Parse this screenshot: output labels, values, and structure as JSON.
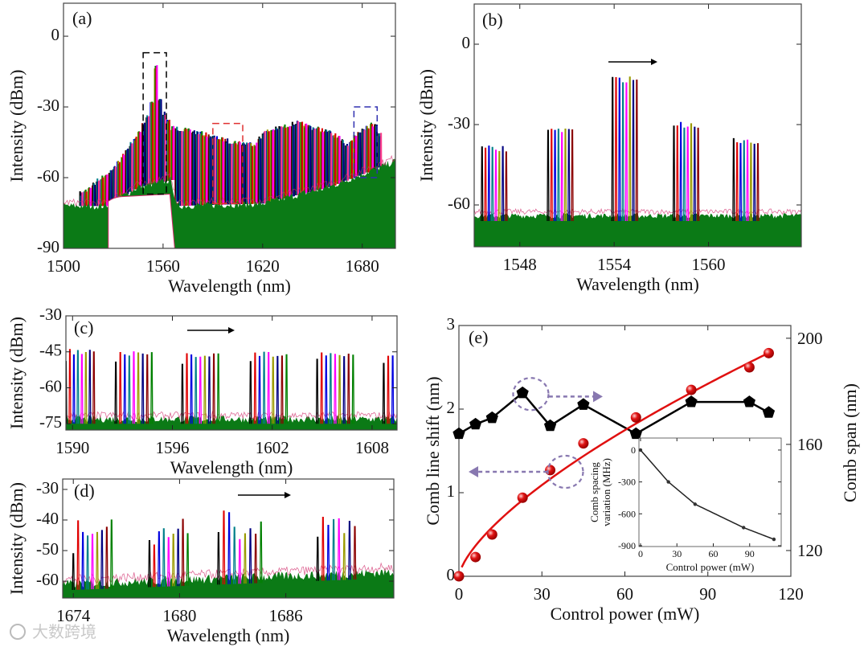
{
  "watermark": "大数跨境",
  "colors": {
    "floor": "#0b7a16",
    "fit": "#e01010",
    "points_red": "#e01515",
    "points_black": "#000000",
    "annotation": "#8878b0",
    "lines": [
      "#000000",
      "#e00000",
      "#0000e0",
      "#00808a",
      "#ff00ff",
      "#9a9a00",
      "#000080",
      "#8b0000",
      "#008000",
      "#ff3d8a"
    ]
  },
  "chart_data": [
    {
      "id": "a",
      "type": "line",
      "panel_label": "(a)",
      "xlabel": "Wavelength (nm)",
      "ylabel": "Intensity (dBm)",
      "xlim": [
        1500,
        1700
      ],
      "ylim": [
        -90,
        14
      ],
      "xticks": [
        1500,
        1560,
        1620,
        1680
      ],
      "yticks": [
        -90,
        -60,
        -30,
        0
      ],
      "comb_spacing_nm": 2.5,
      "comb_range": [
        1510,
        1692
      ],
      "envelope": [
        [
          1510,
          -66
        ],
        [
          1530,
          -55
        ],
        [
          1545,
          -40
        ],
        [
          1552,
          -30
        ],
        [
          1555,
          -12
        ],
        [
          1558,
          -29
        ],
        [
          1562,
          -35
        ],
        [
          1565,
          -38
        ],
        [
          1580,
          -40
        ],
        [
          1600,
          -44
        ],
        [
          1615,
          -45
        ],
        [
          1620,
          -40
        ],
        [
          1640,
          -36
        ],
        [
          1660,
          -40
        ],
        [
          1670,
          -45
        ],
        [
          1680,
          -38
        ],
        [
          1688,
          -36
        ],
        [
          1692,
          -46
        ]
      ],
      "floor": [
        [
          1500,
          -72
        ],
        [
          1525,
          -72
        ],
        [
          1545,
          -64
        ],
        [
          1565,
          -61
        ],
        [
          1568,
          -72
        ],
        [
          1620,
          -71
        ],
        [
          1660,
          -64
        ],
        [
          1700,
          -53
        ]
      ],
      "notch": {
        "range": [
          1527,
          1567
        ],
        "top": -68
      },
      "highlight_boxes": [
        {
          "color": "#000000",
          "x": [
            1548,
            1562
          ],
          "y": [
            -67,
            -7
          ]
        },
        {
          "color": "#e03030",
          "x": [
            1590,
            1608
          ],
          "y": [
            -71,
            -37
          ]
        },
        {
          "color": "#3030b0",
          "x": [
            1675,
            1689
          ],
          "y": [
            -60,
            -30
          ]
        }
      ]
    },
    {
      "id": "b",
      "type": "line",
      "panel_label": "(b)",
      "xlabel": "Wavelength (nm)",
      "ylabel": "Intensity (dBm)",
      "xlim": [
        1545.1,
        1565.9
      ],
      "ylim": [
        -75.6,
        15
      ],
      "xticks": [
        1548,
        1554,
        1560
      ],
      "yticks": [
        -60,
        -30,
        0
      ],
      "floor_level": -64,
      "groups": [
        {
          "start": 1545.6,
          "lines": 8,
          "spacing": 0.22,
          "peak": -38
        },
        {
          "start": 1549.8,
          "lines": 8,
          "spacing": 0.22,
          "peak": -31
        },
        {
          "start": 1553.9,
          "lines": 8,
          "spacing": 0.22,
          "peak": -12
        },
        {
          "start": 1557.8,
          "lines": 8,
          "spacing": 0.22,
          "peak": -29
        },
        {
          "start": 1561.6,
          "lines": 8,
          "spacing": 0.22,
          "peak": -35
        }
      ],
      "arrow": "shift-right"
    },
    {
      "id": "c",
      "type": "line",
      "panel_label": "(c)",
      "xlabel": "Wavelength (nm)",
      "ylabel": "Intensity (dBm)",
      "xlim": [
        1589.6,
        1609.5
      ],
      "ylim": [
        -77.6,
        -30
      ],
      "xticks": [
        1590,
        1596,
        1602,
        1608
      ],
      "yticks": [
        -75,
        -60,
        -45,
        -30
      ],
      "floor_level": -73,
      "groups": [
        {
          "start": 1589.6,
          "lines": 8,
          "spacing": 0.24,
          "peak": -44
        },
        {
          "start": 1592.6,
          "lines": 9,
          "spacing": 0.27,
          "peak": -45
        },
        {
          "start": 1596.6,
          "lines": 9,
          "spacing": 0.27,
          "peak": -45
        },
        {
          "start": 1600.7,
          "lines": 9,
          "spacing": 0.27,
          "peak": -45
        },
        {
          "start": 1604.7,
          "lines": 9,
          "spacing": 0.27,
          "peak": -45
        },
        {
          "start": 1608.7,
          "lines": 3,
          "spacing": 0.27,
          "peak": -46
        }
      ],
      "arrow": "shift-right"
    },
    {
      "id": "d",
      "type": "line",
      "panel_label": "(d)",
      "xlabel": "Wavelength (nm)",
      "ylabel": "Intensity (dBm)",
      "xlim": [
        1673.4,
        1692.1
      ],
      "ylim": [
        -65.5,
        -26.6
      ],
      "xticks": [
        1674,
        1680,
        1686
      ],
      "yticks": [
        -60,
        -50,
        -40,
        -30
      ],
      "floor_level": -61,
      "floor_rise": 4,
      "groups": [
        {
          "start": 1674.0,
          "lines": 9,
          "spacing": 0.27,
          "peak": -39
        },
        {
          "start": 1678.3,
          "lines": 9,
          "spacing": 0.27,
          "peak": -39
        },
        {
          "start": 1682.2,
          "lines": 9,
          "spacing": 0.3,
          "peak": -37
        },
        {
          "start": 1687.8,
          "lines": 8,
          "spacing": 0.3,
          "peak": -36
        }
      ],
      "arrow": "shift-right"
    },
    {
      "id": "e",
      "type": "scatter",
      "panel_label": "(e)",
      "xlabel": "Control power (mW)",
      "ylabel": "Comb line shift (nm)",
      "y2label": "Comb span (nm)",
      "xlim": [
        0,
        120
      ],
      "ylim": [
        0,
        3
      ],
      "y2lim": [
        110.3,
        204.8
      ],
      "xticks": [
        0,
        30,
        60,
        90,
        120
      ],
      "yticks": [
        0,
        1,
        2,
        3
      ],
      "y2ticks": [
        120,
        160,
        200
      ],
      "series": [
        {
          "name": "Comb line shift",
          "axis": "left",
          "marker": "sphere",
          "x": [
            0,
            6,
            12,
            23,
            33,
            45,
            64,
            84,
            105,
            112
          ],
          "y": [
            0,
            0.23,
            0.5,
            0.94,
            1.27,
            1.59,
            1.9,
            2.23,
            2.5,
            2.67
          ]
        },
        {
          "name": "Comb span",
          "axis": "right",
          "marker": "pentagon",
          "x": [
            0,
            6,
            12,
            23,
            33,
            45,
            64,
            84,
            105,
            112
          ],
          "y": [
            164,
            167.6,
            170,
            179.4,
            167,
            175,
            164,
            176,
            176,
            172
          ]
        }
      ],
      "fit": {
        "model": "power",
        "a": 0.108,
        "b": 0.68,
        "x_range": [
          1,
          113
        ]
      },
      "inset": {
        "type": "line",
        "xlabel": "Control power (mW)",
        "ylabel_line1": "Comb spacing",
        "ylabel_line2": "variation (MHz)",
        "xlim": [
          -1.3,
          116
        ],
        "ylim": [
          -908,
          113
        ],
        "xticks": [
          0,
          30,
          60,
          90
        ],
        "yticks": [
          0,
          -300,
          -600,
          -900
        ],
        "x": [
          0,
          23,
          45,
          85,
          110
        ],
        "y": [
          0,
          -300,
          -510,
          -730,
          -840
        ]
      }
    }
  ]
}
